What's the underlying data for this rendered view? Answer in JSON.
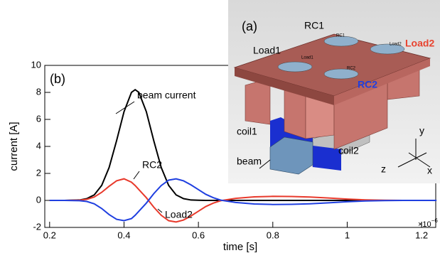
{
  "chart_data": {
    "type": "line",
    "panel_label": "(b)",
    "xlabel": "time [s]",
    "ylabel": "current [A]",
    "x_multiplier": {
      "base": "×10",
      "exponent": "−6"
    },
    "x": [
      0.2,
      0.24,
      0.28,
      0.3,
      0.32,
      0.34,
      0.36,
      0.38,
      0.4,
      0.42,
      0.43,
      0.44,
      0.46,
      0.48,
      0.5,
      0.52,
      0.54,
      0.56,
      0.58,
      0.6,
      0.62,
      0.64,
      0.66,
      0.7,
      0.75,
      0.8,
      0.85,
      0.9,
      0.95,
      1.0,
      1.05,
      1.1,
      1.15,
      1.2,
      1.24
    ],
    "series": [
      {
        "name": "beam current",
        "color": "#000000",
        "values": [
          0,
          0,
          0.03,
          0.13,
          0.41,
          1.11,
          2.44,
          4.42,
          6.57,
          8.0,
          8.2,
          8.0,
          6.57,
          4.42,
          2.44,
          1.11,
          0.41,
          0.13,
          0.03,
          0.01,
          0,
          0,
          0,
          0,
          0,
          0,
          0,
          0,
          0,
          0,
          0,
          0,
          0,
          0,
          0
        ]
      },
      {
        "name": "Load2",
        "color": "#e8392b",
        "values": [
          0,
          0,
          0.02,
          0.08,
          0.25,
          0.6,
          1.05,
          1.45,
          1.6,
          1.35,
          1.1,
          0.8,
          0.2,
          -0.5,
          -1.1,
          -1.5,
          -1.6,
          -1.45,
          -1.15,
          -0.8,
          -0.45,
          -0.2,
          -0.02,
          0.15,
          0.26,
          0.3,
          0.29,
          0.25,
          0.18,
          0.1,
          0.04,
          0.01,
          0,
          0,
          0
        ]
      },
      {
        "name": "RC2",
        "color": "#1f3fe0",
        "values": [
          0,
          0,
          -0.02,
          -0.08,
          -0.25,
          -0.6,
          -1.05,
          -1.4,
          -1.5,
          -1.35,
          -1.1,
          -0.8,
          -0.2,
          0.5,
          1.1,
          1.5,
          1.6,
          1.45,
          1.15,
          0.8,
          0.45,
          0.2,
          0.02,
          -0.15,
          -0.26,
          -0.3,
          -0.29,
          -0.25,
          -0.18,
          -0.1,
          -0.04,
          -0.01,
          0,
          0,
          0
        ]
      }
    ],
    "xlim": [
      0.187,
      1.238
    ],
    "ylim": [
      -2,
      10
    ],
    "xticks": [
      0.2,
      0.4,
      0.6,
      0.8,
      1,
      1.2
    ],
    "yticks": [
      -2,
      0,
      2,
      4,
      6,
      8,
      10
    ],
    "inset": {
      "panel_label": "(a)",
      "labels": [
        "RC1",
        "Load1",
        "coil1",
        "coil2",
        "beam",
        "y",
        "z",
        "x"
      ],
      "load2_label": "Load2",
      "rc2_label": "RC2",
      "small_labels": [
        "Load1",
        "RC1",
        "RC2",
        "Load2"
      ]
    }
  }
}
